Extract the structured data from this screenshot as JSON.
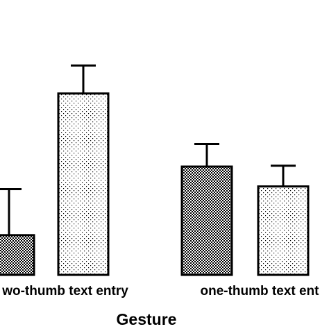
{
  "chart_data": {
    "type": "bar",
    "categories": [
      "two-thumb text entry",
      "one-thumb text entry"
    ],
    "category_labels_visible": [
      "wo-thumb text entry",
      "one-thumb text ent"
    ],
    "xlabel": "Gesture",
    "series": [
      {
        "pattern": "checker",
        "values": [
          4.4,
          12.0
        ],
        "errors": [
          5.1,
          2.5
        ]
      },
      {
        "pattern": "dots",
        "values": [
          20.1,
          9.8
        ],
        "errors": [
          3.1,
          2.3
        ]
      }
    ],
    "ylim": [
      0,
      30
    ],
    "colors": {
      "ink": "#000000",
      "background": "#ffffff"
    }
  }
}
